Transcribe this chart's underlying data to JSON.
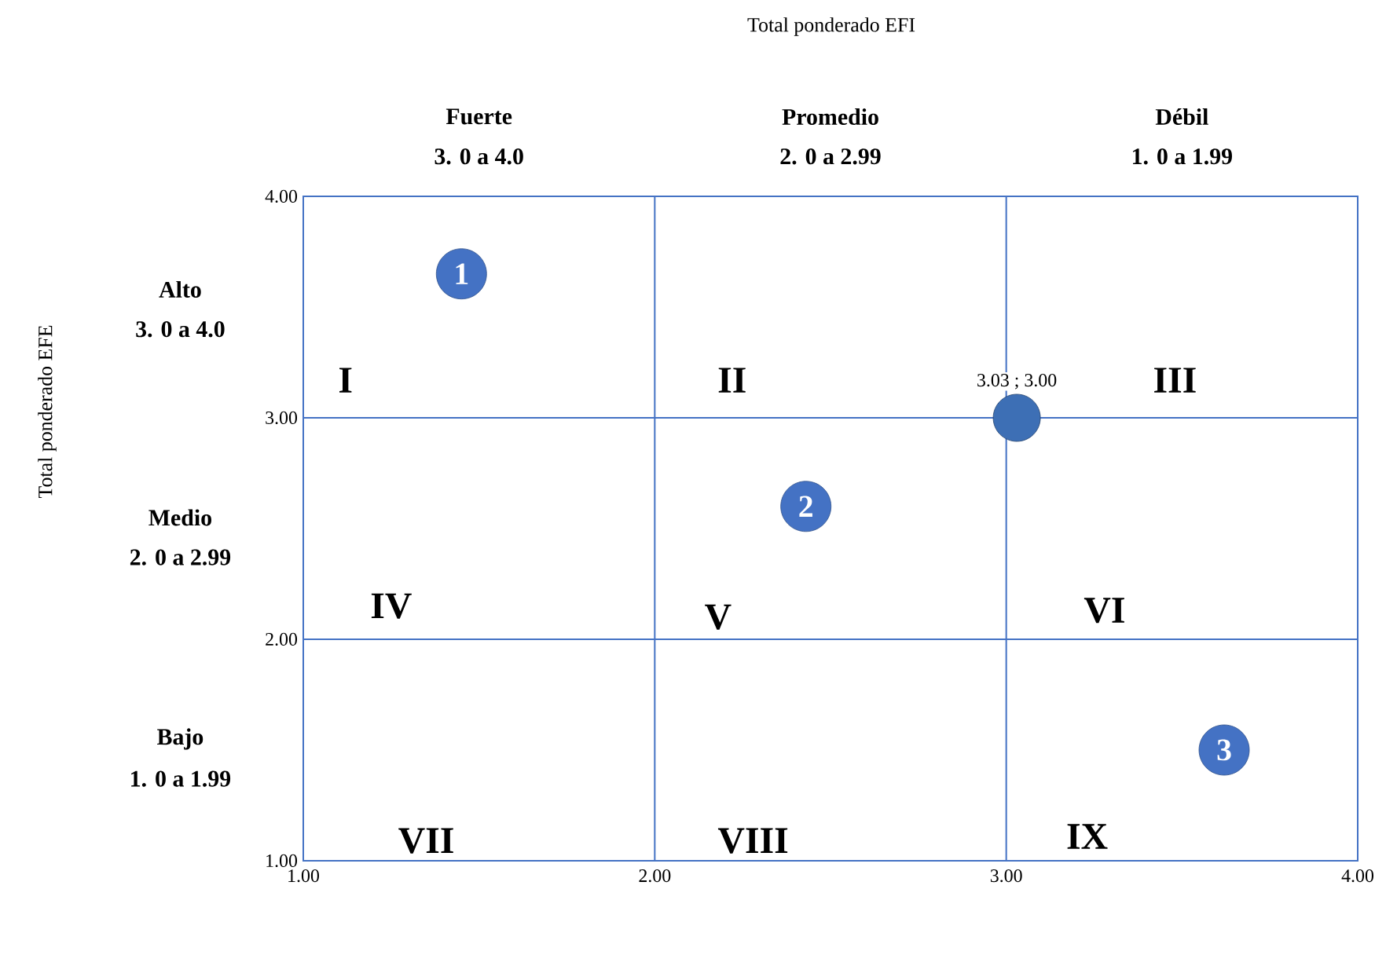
{
  "chart_data": {
    "type": "scatter",
    "title": "Total ponderado EFI",
    "x": [
      3.03
    ],
    "values": [
      3.0
    ],
    "value_labels": [
      "3.03 ; 3.00"
    ],
    "color": "#3d6fb5",
    "xlim": [
      1,
      4
    ],
    "ylim": [
      1,
      4
    ],
    "xticks": [
      {
        "value": 1,
        "label": "1.00"
      },
      {
        "value": 2,
        "label": "2.00"
      },
      {
        "value": 3,
        "label": "3.00"
      },
      {
        "value": 4,
        "label": "4.00"
      }
    ],
    "yticks": [
      {
        "value": 1,
        "label": "1.00"
      },
      {
        "value": 2,
        "label": "2.00"
      },
      {
        "value": 3,
        "label": "3.00"
      },
      {
        "value": 4,
        "label": "4.00"
      }
    ],
    "grid": true,
    "annotations": [
      "Fuerte",
      "Promedio",
      "Débil",
      "3. 0 a 4.0",
      "2. 0 a 2.99",
      "1. 0 a 1.99",
      "Alto",
      "Medio",
      "Bajo",
      "3. 0 a 4.0",
      "2. 0 a 2.99",
      "1. 0 a 1.99",
      "I",
      "II",
      "III",
      "IV",
      "V",
      "VI",
      "VII",
      "VIII",
      "IX",
      "1",
      "2",
      "3",
      "Total ponderado EFE"
    ]
  }
}
